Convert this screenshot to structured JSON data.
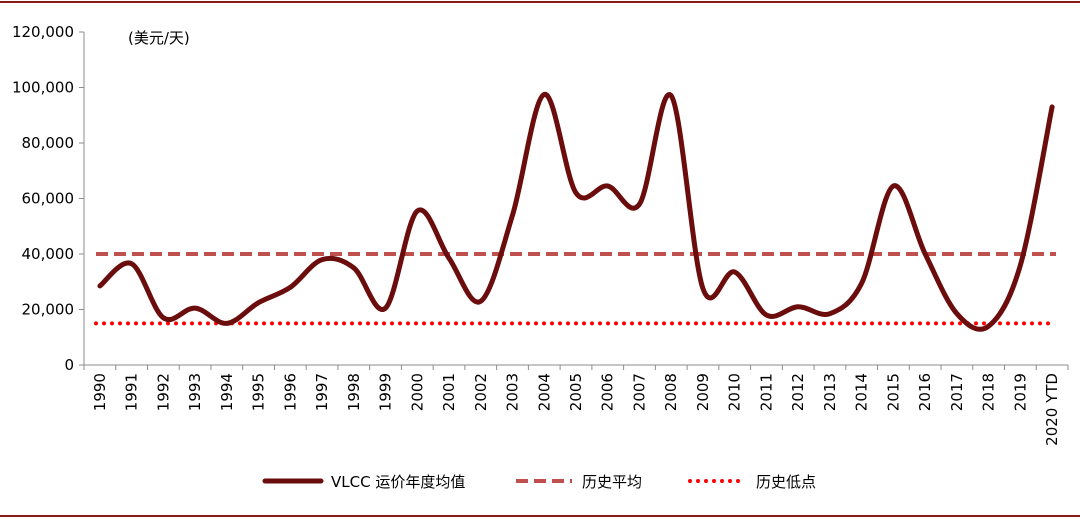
{
  "chart_data": {
    "type": "line",
    "title": "",
    "xlabel": "",
    "ylabel": "",
    "unit_label": "(美元/天)",
    "categories": [
      "1990",
      "1991",
      "1992",
      "1993",
      "1994",
      "1995",
      "1996",
      "1997",
      "1998",
      "1999",
      "2000",
      "2001",
      "2002",
      "2003",
      "2004",
      "2005",
      "2006",
      "2007",
      "2008",
      "2009",
      "2010",
      "2011",
      "2012",
      "2013",
      "2014",
      "2015",
      "2016",
      "2017",
      "2018",
      "2019",
      "2020 YTD"
    ],
    "ylim": [
      0,
      120000
    ],
    "yticks": [
      0,
      20000,
      40000,
      60000,
      80000,
      100000,
      120000
    ],
    "ytick_labels": [
      "0",
      "20,000",
      "40,000",
      "60,000",
      "80,000",
      "100,000",
      "120,000"
    ],
    "grid": false,
    "legend_position": "bottom",
    "series": [
      {
        "name": "VLCC 运价年度均值",
        "style": "solid",
        "color": "#6b0d0d",
        "values": [
          28500,
          36500,
          17000,
          20500,
          15000,
          22500,
          28000,
          38000,
          35000,
          20500,
          55500,
          38500,
          23000,
          54000,
          97500,
          62000,
          64500,
          58000,
          97000,
          27500,
          33500,
          18000,
          21000,
          18500,
          29500,
          64500,
          40000,
          18500,
          14000,
          36000,
          93000
        ]
      },
      {
        "name": "历史平均",
        "style": "dashed",
        "color": "#c0504d",
        "values": [
          40000,
          40000,
          40000,
          40000,
          40000,
          40000,
          40000,
          40000,
          40000,
          40000,
          40000,
          40000,
          40000,
          40000,
          40000,
          40000,
          40000,
          40000,
          40000,
          40000,
          40000,
          40000,
          40000,
          40000,
          40000,
          40000,
          40000,
          40000,
          40000,
          40000,
          40000
        ]
      },
      {
        "name": "历史低点",
        "style": "dotted",
        "color": "#ff0000",
        "values": [
          15000,
          15000,
          15000,
          15000,
          15000,
          15000,
          15000,
          15000,
          15000,
          15000,
          15000,
          15000,
          15000,
          15000,
          15000,
          15000,
          15000,
          15000,
          15000,
          15000,
          15000,
          15000,
          15000,
          15000,
          15000,
          15000,
          15000,
          15000,
          15000,
          15000,
          15000
        ]
      }
    ]
  },
  "frame_color": "#8b1a1a"
}
